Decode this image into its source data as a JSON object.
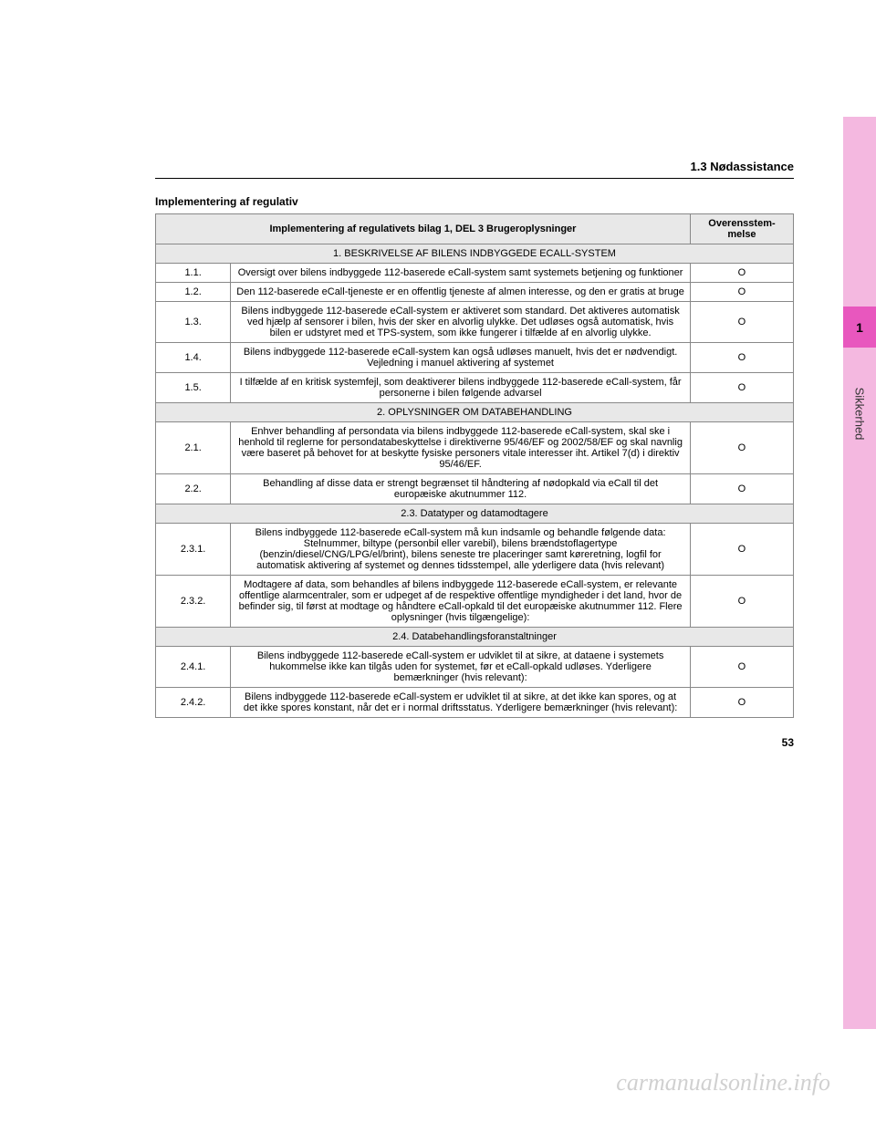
{
  "sidebar": {
    "chapter_num": "1",
    "chapter_label": "Sikkerhed",
    "outer_bg": "#f4b8e0",
    "inner_bg": "#e857be"
  },
  "header": {
    "section": "1.3  Nødassistance"
  },
  "subtitle": "Implementering af regulativ",
  "table": {
    "header_left": "Implementering af regulativets bilag 1, DEL 3 Brugeroplysninger",
    "header_right": "Overensstem-melse",
    "rows": [
      {
        "type": "section",
        "text": "1. BESKRIVELSE AF BILENS INDBYGGEDE ECALL-SYSTEM"
      },
      {
        "type": "data",
        "num": "1.1.",
        "desc": "Oversigt over bilens indbyggede 112-baserede eCall-system samt systemets betjening og funktioner",
        "comp": "O"
      },
      {
        "type": "data",
        "num": "1.2.",
        "desc": "Den 112-baserede eCall-tjeneste er en offentlig tjeneste af almen interesse, og den er gratis at bruge",
        "comp": "O"
      },
      {
        "type": "data",
        "num": "1.3.",
        "desc": "Bilens indbyggede 112-baserede eCall-system er aktiveret som standard. Det aktiveres automatisk ved hjælp af sensorer i bilen, hvis der sker en alvorlig ulykke. Det udløses også automatisk, hvis bilen er udstyret med et TPS-system, som ikke fungerer i tilfælde af en alvorlig ulykke.",
        "comp": "O"
      },
      {
        "type": "data",
        "num": "1.4.",
        "desc": "Bilens indbyggede 112-baserede eCall-system kan også udløses manuelt, hvis det er nødvendigt. Vejledning i manuel aktivering af systemet",
        "comp": "O"
      },
      {
        "type": "data",
        "num": "1.5.",
        "desc": "I tilfælde af en kritisk systemfejl, som deaktiverer bilens indbyggede 112-baserede eCall-system, får personerne i bilen følgende advarsel",
        "comp": "O"
      },
      {
        "type": "section",
        "text": "2. OPLYSNINGER OM DATABEHANDLING"
      },
      {
        "type": "data",
        "num": "2.1.",
        "desc": "Enhver behandling af persondata via bilens indbyggede 112-baserede eCall-system, skal ske i henhold til reglerne for persondatabeskyttelse i direktiverne 95/46/EF og 2002/58/EF og skal navnlig være baseret på behovet for at beskytte fysiske personers vitale interesser iht. Artikel 7(d) i direktiv 95/46/EF.",
        "comp": "O"
      },
      {
        "type": "data",
        "num": "2.2.",
        "desc": "Behandling af disse data er strengt begrænset til håndtering af nødopkald via eCall til det europæiske akutnummer 112.",
        "comp": "O"
      },
      {
        "type": "section",
        "text": "2.3. Datatyper og datamodtagere"
      },
      {
        "type": "data",
        "num": "2.3.1.",
        "desc": "Bilens indbyggede 112-baserede eCall-system må kun indsamle og behandle følgende data: Stelnummer, biltype (personbil eller varebil), bilens brændstoflagertype (benzin/diesel/CNG/LPG/el/brint), bilens seneste tre placeringer samt køreretning, logfil for automatisk aktivering af systemet og dennes tidsstempel, alle yderligere data (hvis relevant)",
        "comp": "O"
      },
      {
        "type": "data",
        "num": "2.3.2.",
        "desc": "Modtagere af data, som behandles af bilens indbyggede 112-baserede eCall-system, er relevante offentlige alarmcentraler, som er udpeget af de respektive offentlige myndigheder i det land, hvor de befinder sig, til først at modtage og håndtere eCall-opkald til det europæiske akutnummer 112. Flere oplysninger (hvis tilgængelige):",
        "comp": "O"
      },
      {
        "type": "section",
        "text": "2.4. Databehandlingsforanstaltninger"
      },
      {
        "type": "data",
        "num": "2.4.1.",
        "desc": "Bilens indbyggede 112-baserede eCall-system er udviklet til at sikre, at dataene i systemets hukommelse ikke kan tilgås uden for systemet, før et eCall-opkald udløses. Yderligere bemærkninger (hvis relevant):",
        "comp": "O"
      },
      {
        "type": "data",
        "num": "2.4.2.",
        "desc": "Bilens indbyggede 112-baserede eCall-system er udviklet til at sikre, at det ikke kan spores, og at det ikke spores konstant, når det er i normal driftsstatus. Yderligere bemærkninger (hvis relevant):",
        "comp": "O"
      }
    ]
  },
  "page_num": "53",
  "watermark": "carmanualsonline.info"
}
